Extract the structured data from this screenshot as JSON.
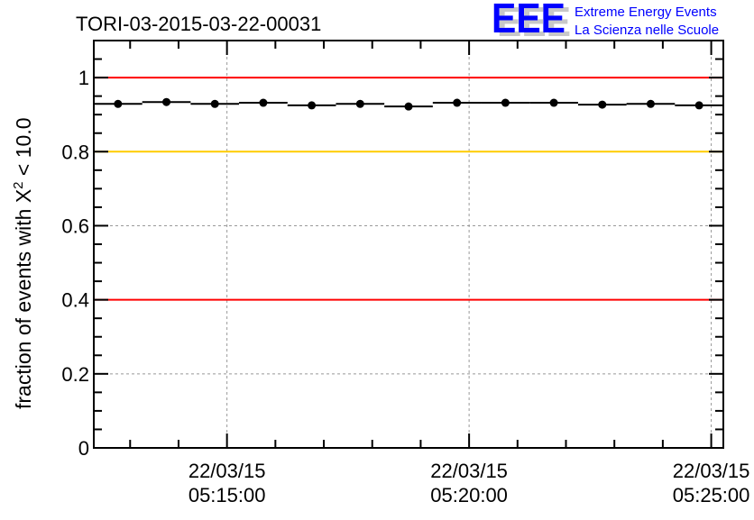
{
  "chart_data": {
    "type": "scatter",
    "title": "TORI-03-2015-03-22-00031",
    "ylabel_prefix": "fraction of events with ",
    "ylabel_symbol": "X",
    "ylabel_sup": "2",
    "ylabel_suffix": " < 10.0",
    "xlabel": "",
    "xlim_minutes_after_0500": [
      12.25,
      25.25
    ],
    "ylim": [
      0,
      1.1
    ],
    "y_ticks": [
      {
        "value": 0,
        "label": "0"
      },
      {
        "value": 0.2,
        "label": "0.2"
      },
      {
        "value": 0.4,
        "label": "0.4"
      },
      {
        "value": 0.6,
        "label": "0.6"
      },
      {
        "value": 0.8,
        "label": "0.8"
      },
      {
        "value": 1,
        "label": "1"
      }
    ],
    "x_ticks": [
      {
        "minute": 15,
        "date": "22/03/15",
        "time": "05:15:00"
      },
      {
        "minute": 20,
        "date": "22/03/15",
        "time": "05:20:00"
      },
      {
        "minute": 25,
        "date": "22/03/15",
        "time": "05:25:00"
      }
    ],
    "bin_width_minutes": 1,
    "x_minutes_after_0500": [
      12.75,
      13.75,
      14.75,
      15.75,
      16.75,
      17.75,
      18.75,
      19.75,
      20.75,
      21.75,
      22.75,
      23.75,
      24.75
    ],
    "values": [
      0.929,
      0.934,
      0.929,
      0.932,
      0.925,
      0.929,
      0.922,
      0.932,
      0.932,
      0.932,
      0.927,
      0.929,
      0.925
    ],
    "reference_lines": [
      {
        "value": 1.0,
        "color": "#ff0000"
      },
      {
        "value": 0.8,
        "color": "#ffcc00"
      },
      {
        "value": 0.4,
        "color": "#ff0000"
      }
    ],
    "grid": true
  },
  "logo": {
    "letters": "EEE",
    "line1": "Extreme Energy Events",
    "line2": "La Scienza nelle Scuole",
    "color": "#0000ff"
  }
}
